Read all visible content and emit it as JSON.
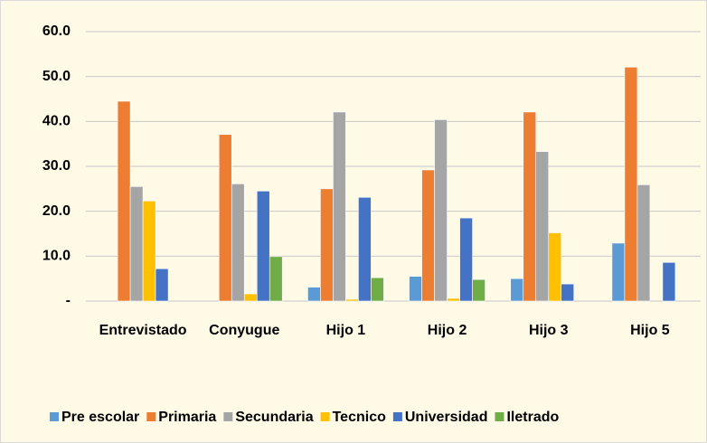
{
  "chart_data": {
    "type": "bar",
    "categories": [
      "Entrevistado",
      "Conyugue",
      "Hijo 1",
      "Hijo 2",
      "Hijo 3",
      "Hijo 5"
    ],
    "series": [
      {
        "name": "Pre escolar",
        "color": "#5b9bd5",
        "values": [
          null,
          null,
          3.1,
          5.5,
          5.0,
          12.9
        ]
      },
      {
        "name": "Primaria",
        "color": "#ed7d31",
        "values": [
          44.5,
          37.1,
          25.0,
          29.2,
          42.1,
          52.1
        ]
      },
      {
        "name": "Secundaria",
        "color": "#a5a5a5",
        "values": [
          25.5,
          26.1,
          42.1,
          40.4,
          33.3,
          25.9
        ]
      },
      {
        "name": "Tecnico",
        "color": "#ffc000",
        "values": [
          22.3,
          1.6,
          0.4,
          0.6,
          15.2,
          null
        ]
      },
      {
        "name": "Universidad",
        "color": "#4472c4",
        "values": [
          7.2,
          24.5,
          23.1,
          18.5,
          3.8,
          8.6
        ]
      },
      {
        "name": "Iletrado",
        "color": "#70ad47",
        "values": [
          null,
          9.9,
          5.2,
          4.8,
          null,
          null
        ]
      }
    ],
    "ylim": [
      0,
      60
    ],
    "yticks": [
      {
        "value": 0,
        "label": "-"
      },
      {
        "value": 10,
        "label": "10.0"
      },
      {
        "value": 20,
        "label": "20.0"
      },
      {
        "value": 30,
        "label": "30.0"
      },
      {
        "value": 40,
        "label": "40.0"
      },
      {
        "value": 50,
        "label": "50.0"
      },
      {
        "value": 60,
        "label": "60.0"
      }
    ],
    "grid": true,
    "legend": "bottom"
  }
}
